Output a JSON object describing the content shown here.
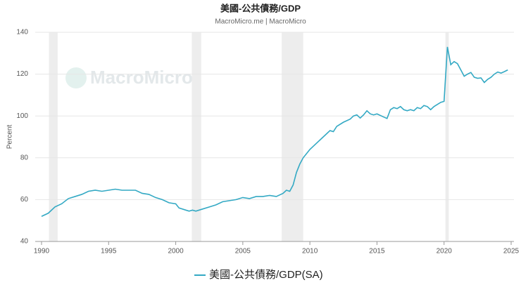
{
  "chart_data": {
    "type": "line",
    "title": "美國-公共債務/GDP",
    "subtitle": "MacroMicro.me | MacroMicro",
    "watermark": "MacroMicro",
    "y_label": "Percent",
    "x": [
      1990,
      1990.5,
      1991,
      1991.5,
      1992,
      1992.5,
      1993,
      1993.5,
      1994,
      1994.5,
      1995,
      1995.5,
      1996,
      1996.5,
      1997,
      1997.5,
      1998,
      1998.5,
      1999,
      1999.5,
      2000,
      2000.25,
      2000.75,
      2001,
      2001.25,
      2001.5,
      2002,
      2002.5,
      2003,
      2003.5,
      2004,
      2004.5,
      2005,
      2005.5,
      2006,
      2006.5,
      2007,
      2007.5,
      2008,
      2008.25,
      2008.5,
      2008.75,
      2009,
      2009.25,
      2009.5,
      2009.75,
      2010,
      2010.5,
      2011,
      2011.5,
      2011.75,
      2012,
      2012.5,
      2013,
      2013.25,
      2013.5,
      2013.75,
      2014,
      2014.25,
      2014.5,
      2014.75,
      2015,
      2015.5,
      2015.75,
      2016,
      2016.25,
      2016.5,
      2016.75,
      2017,
      2017.25,
      2017.5,
      2017.75,
      2018,
      2018.25,
      2018.5,
      2018.75,
      2019,
      2019.25,
      2019.75,
      2020,
      2020.25,
      2020.5,
      2020.75,
      2021,
      2021.25,
      2021.5,
      2021.75,
      2022,
      2022.25,
      2022.5,
      2022.75,
      2023,
      2023.25,
      2023.5,
      2023.75,
      2024,
      2024.25,
      2024.5,
      2024.75
    ],
    "series": [
      {
        "name": "美國-公共債務/GDP(SA)",
        "color": "#33a9c4",
        "values": [
          52,
          53.5,
          56.5,
          58,
          60.5,
          61.5,
          62.5,
          64,
          64.5,
          64,
          64.5,
          65,
          64.5,
          64.5,
          64.5,
          63,
          62.5,
          61,
          60,
          58.5,
          58,
          56,
          55,
          54.5,
          55,
          54.5,
          55.5,
          56.5,
          57.5,
          59,
          59.5,
          60,
          61,
          60.5,
          61.5,
          61.5,
          62,
          61.5,
          63,
          64.5,
          64,
          67,
          73,
          77,
          80,
          82,
          84,
          87,
          90,
          93,
          92.5,
          95,
          97,
          98.5,
          100,
          100.5,
          99,
          100.5,
          102.5,
          101,
          100.5,
          101,
          99.5,
          98.8,
          103,
          104,
          103.5,
          104.5,
          103,
          102.5,
          103,
          102.5,
          104,
          103.5,
          105,
          104.5,
          103,
          104.5,
          106.5,
          107,
          133,
          124.5,
          126,
          125,
          122,
          119,
          120,
          120.8,
          118.5,
          118,
          118.2,
          116,
          117.5,
          118.5,
          120,
          121,
          120.5,
          121.2,
          122
        ]
      }
    ],
    "recessions": [
      [
        1990.55,
        1991.2
      ],
      [
        2001.2,
        2001.9
      ],
      [
        2007.9,
        2009.5
      ],
      [
        2020.1,
        2020.35
      ]
    ],
    "recession_color": "#ededed",
    "xlim": [
      1990,
      2025
    ],
    "xticks": [
      1990,
      1995,
      2000,
      2005,
      2010,
      2015,
      2020,
      2025
    ],
    "ylim": [
      40,
      140
    ],
    "yticks": [
      40,
      60,
      80,
      100,
      120,
      140
    ],
    "grid": true
  }
}
